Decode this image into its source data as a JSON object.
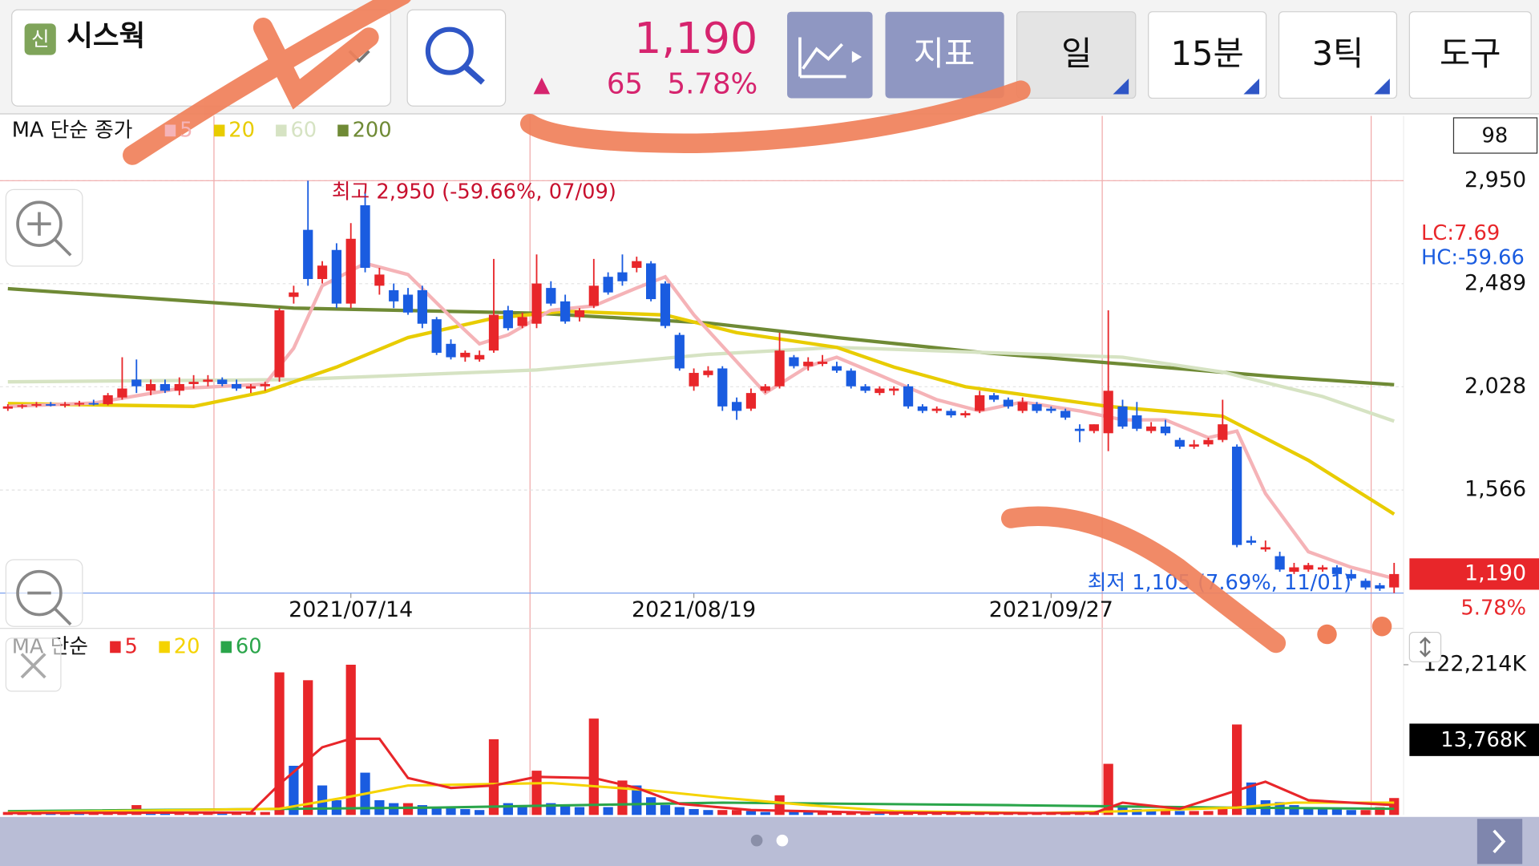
{
  "header": {
    "badge": "신",
    "stock_name": "시스웍",
    "price": "1,190",
    "change_arrow": "▲",
    "change": "65",
    "change_pct": "5.78%",
    "buttons": [
      "지표",
      "일",
      "15분",
      "3틱",
      "도구"
    ]
  },
  "chart_data": [
    {
      "type": "candlestick",
      "legend_title": "MA 단순 종가",
      "up_color": "#e8262a",
      "down_color": "#1a5ce0",
      "open": [
        1930,
        1940,
        1945,
        1950,
        1945,
        1950,
        1955,
        1950,
        1980,
        2060,
        2010,
        2040,
        2010,
        2040,
        2050,
        2060,
        2040,
        2020,
        2030,
        2070,
        2430,
        2730,
        2510,
        2640,
        2400,
        2840,
        2480,
        2460,
        2440,
        2460,
        2330,
        2220,
        2160,
        2150,
        2190,
        2370,
        2300,
        2310,
        2470,
        2410,
        2340,
        2390,
        2520,
        2540,
        2560,
        2580,
        2490,
        2260,
        2030,
        2080,
        2110,
        1960,
        1930,
        2010,
        2030,
        2160,
        2120,
        2130,
        2120,
        2100,
        2030,
        2000,
        2010,
        2030,
        1940,
        1920,
        1920,
        1900,
        1920,
        1990,
        1970,
        1920,
        1950,
        1930,
        1920,
        1840,
        1830,
        1820,
        1940,
        1900,
        1830,
        1850,
        1790,
        1760,
        1770,
        1790,
        1760,
        1340,
        1300,
        1270,
        1200,
        1210,
        1210,
        1220,
        1190,
        1160,
        1140,
        1130
      ],
      "high": [
        1950,
        1950,
        1960,
        1960,
        1960,
        1965,
        1970,
        2000,
        2160,
        2150,
        2060,
        2060,
        2070,
        2080,
        2080,
        2070,
        2060,
        2040,
        2050,
        2380,
        2480,
        2950,
        2590,
        2670,
        2760,
        2900,
        2560,
        2490,
        2470,
        2480,
        2340,
        2240,
        2190,
        2190,
        2600,
        2390,
        2360,
        2620,
        2500,
        2440,
        2380,
        2600,
        2540,
        2620,
        2610,
        2590,
        2500,
        2270,
        2110,
        2120,
        2120,
        1980,
        2020,
        2040,
        2270,
        2170,
        2160,
        2170,
        2140,
        2110,
        2040,
        2030,
        2030,
        2040,
        1950,
        1940,
        1930,
        1920,
        2010,
        2000,
        1980,
        1980,
        1960,
        1940,
        1930,
        1860,
        1860,
        2370,
        1970,
        1960,
        1870,
        1880,
        1800,
        1790,
        1800,
        1970,
        1770,
        1360,
        1340,
        1290,
        1240,
        1240,
        1230,
        1230,
        1210,
        1170,
        1150,
        1240
      ],
      "low": [
        1920,
        1930,
        1935,
        1940,
        1935,
        1940,
        1945,
        1945,
        1970,
        2000,
        1990,
        2000,
        1990,
        2020,
        2030,
        2030,
        2010,
        2000,
        2010,
        2050,
        2400,
        2480,
        2490,
        2380,
        2380,
        2540,
        2440,
        2380,
        2350,
        2290,
        2170,
        2150,
        2140,
        2140,
        2180,
        2280,
        2290,
        2290,
        2390,
        2310,
        2320,
        2380,
        2440,
        2480,
        2540,
        2410,
        2290,
        2100,
        2010,
        2070,
        1920,
        1880,
        1920,
        2000,
        2020,
        2110,
        2100,
        2120,
        2090,
        2020,
        2000,
        1990,
        1990,
        1930,
        1910,
        1910,
        1890,
        1890,
        1910,
        1960,
        1930,
        1910,
        1910,
        1910,
        1880,
        1780,
        1820,
        1740,
        1840,
        1830,
        1820,
        1810,
        1750,
        1750,
        1760,
        1780,
        1310,
        1320,
        1290,
        1200,
        1190,
        1200,
        1200,
        1180,
        1160,
        1120,
        1115,
        1105
      ],
      "close": [
        1940,
        1945,
        1950,
        1945,
        1950,
        1955,
        1950,
        1990,
        2020,
        2030,
        2040,
        2010,
        2040,
        2050,
        2060,
        2040,
        2020,
        2030,
        2040,
        2370,
        2450,
        2510,
        2570,
        2400,
        2690,
        2560,
        2530,
        2410,
        2360,
        2310,
        2180,
        2160,
        2180,
        2170,
        2350,
        2290,
        2340,
        2490,
        2400,
        2320,
        2370,
        2480,
        2450,
        2500,
        2590,
        2420,
        2300,
        2110,
        2090,
        2100,
        1940,
        1920,
        2000,
        2030,
        2190,
        2120,
        2140,
        2140,
        2100,
        2030,
        2010,
        2020,
        2020,
        1940,
        1920,
        1930,
        1900,
        1910,
        1990,
        1970,
        1940,
        1960,
        1920,
        1920,
        1890,
        1830,
        1860,
        2010,
        1850,
        1840,
        1850,
        1820,
        1760,
        1770,
        1790,
        1860,
        1320,
        1330,
        1310,
        1210,
        1220,
        1230,
        1220,
        1190,
        1170,
        1130,
        1125,
        1190
      ],
      "series": [
        {
          "name": "5",
          "color": "#f5b3b7",
          "x": [
            0,
            6,
            12,
            18,
            20,
            22,
            25,
            28,
            31,
            33,
            35,
            38,
            41,
            44,
            46,
            48,
            51,
            53,
            56,
            58,
            61,
            65,
            68,
            71,
            75,
            78,
            81,
            84,
            86,
            88,
            91,
            94,
            97
          ],
          "values": [
            1940,
            1955,
            2020,
            2040,
            2200,
            2480,
            2580,
            2530,
            2340,
            2220,
            2260,
            2370,
            2390,
            2470,
            2520,
            2350,
            2140,
            2000,
            2120,
            2160,
            2080,
            1970,
            1920,
            1960,
            1920,
            1880,
            1880,
            1800,
            1830,
            1550,
            1290,
            1220,
            1170
          ]
        },
        {
          "name": "20",
          "color": "#e8cc00",
          "x": [
            0,
            13,
            18,
            23,
            28,
            34,
            39,
            46,
            51,
            58,
            62,
            67,
            72,
            77,
            85,
            91,
            97
          ],
          "values": [
            1953,
            1940,
            2006,
            2116,
            2248,
            2335,
            2366,
            2349,
            2270,
            2204,
            2116,
            2028,
            1984,
            1940,
            1896,
            1699,
            1458
          ]
        },
        {
          "name": "60",
          "color": "#d6e3c3",
          "x": [
            0,
            20,
            37,
            49,
            58,
            68,
            78,
            85,
            92,
            97
          ],
          "values": [
            2050,
            2060,
            2103,
            2173,
            2204,
            2182,
            2160,
            2094,
            1984,
            1874
          ]
        },
        {
          "name": "200",
          "color": "#6f8a35",
          "x": [
            0,
            20,
            37,
            49,
            58,
            68,
            78,
            89,
            97
          ],
          "values": [
            2467,
            2380,
            2357,
            2313,
            2248,
            2182,
            2130,
            2072,
            2037
          ]
        }
      ],
      "xlim": [
        -0.55,
        97.66
      ],
      "ylim": [
        1105,
        3240
      ],
      "xticks": [
        {
          "value": 24,
          "label": "2021/07/14"
        },
        {
          "value": 48,
          "label": "2021/08/19"
        },
        {
          "value": 73,
          "label": "2021/09/27"
        }
      ],
      "yticks": [
        {
          "value": 2950,
          "label": "2,950"
        },
        {
          "value": 2489,
          "label": "2,489"
        },
        {
          "value": 2028,
          "label": "2,028"
        },
        {
          "value": 1566,
          "label": "1,566"
        }
      ],
      "high_annotation": "최고 2,950 (-59.66%, 07/09)",
      "low_annotation": "최저 1,105 (7.69%, 11/01)",
      "current": {
        "value": 1190,
        "label": "1,190"
      },
      "current_change": "5.78%",
      "lc": "LC:7.69",
      "hc": "HC:-59.66",
      "visible_count": "98"
    },
    {
      "type": "bar",
      "legend_title": "MA 단순",
      "values": [
        2400,
        2400,
        2400,
        1600,
        2400,
        1600,
        2400,
        2400,
        4800,
        8000,
        3200,
        2400,
        2400,
        2400,
        2400,
        1600,
        1600,
        2400,
        2400,
        116000,
        40000,
        109600,
        24000,
        12000,
        122214,
        34400,
        12000,
        9600,
        9600,
        8000,
        6400,
        5600,
        4800,
        4000,
        61600,
        9600,
        6400,
        36000,
        9600,
        8000,
        6400,
        78400,
        6400,
        28000,
        24000,
        14400,
        8000,
        6400,
        4800,
        4000,
        4000,
        4000,
        3200,
        2400,
        16000,
        3200,
        2400,
        2400,
        2400,
        2400,
        2400,
        1600,
        1600,
        1600,
        1600,
        1600,
        1600,
        1600,
        1600,
        1600,
        1600,
        1600,
        1600,
        1600,
        1600,
        2400,
        2400,
        41600,
        6400,
        4800,
        4000,
        4000,
        3200,
        3200,
        3200,
        6400,
        73600,
        26400,
        12000,
        10400,
        8000,
        6400,
        5600,
        4800,
        4000,
        4000,
        6400,
        13768
      ],
      "series": [
        {
          "name": "5",
          "color": "#e8262a",
          "x": [
            0,
            17,
            19,
            22,
            24,
            26,
            28,
            31,
            34,
            37,
            41,
            44,
            47,
            52,
            60,
            70,
            76,
            78,
            82,
            86,
            88,
            91,
            97
          ],
          "values": [
            1500,
            2000,
            25000,
            55000,
            62000,
            62000,
            30000,
            22000,
            24000,
            31000,
            30000,
            22000,
            9000,
            4000,
            2000,
            1500,
            1500,
            10000,
            5000,
            20000,
            27000,
            12000,
            8000
          ]
        },
        {
          "name": "20",
          "color": "#f5d300",
          "x": [
            0,
            19,
            24,
            28,
            38,
            45,
            50,
            56,
            62,
            72,
            78,
            86,
            90,
            97
          ],
          "values": [
            2000,
            5000,
            15000,
            24000,
            26000,
            20000,
            14000,
            8000,
            3000,
            1500,
            3000,
            6000,
            10000,
            10000
          ]
        },
        {
          "name": "60",
          "color": "#2aa54a",
          "x": [
            0,
            30,
            50,
            70,
            85,
            97
          ],
          "values": [
            3000,
            6000,
            10000,
            8000,
            6000,
            5000
          ]
        }
      ],
      "ylim": [
        0,
        122214
      ],
      "yticks": [
        {
          "value": 122214,
          "label": "122,214K"
        }
      ],
      "current_label": "13,768K"
    }
  ]
}
